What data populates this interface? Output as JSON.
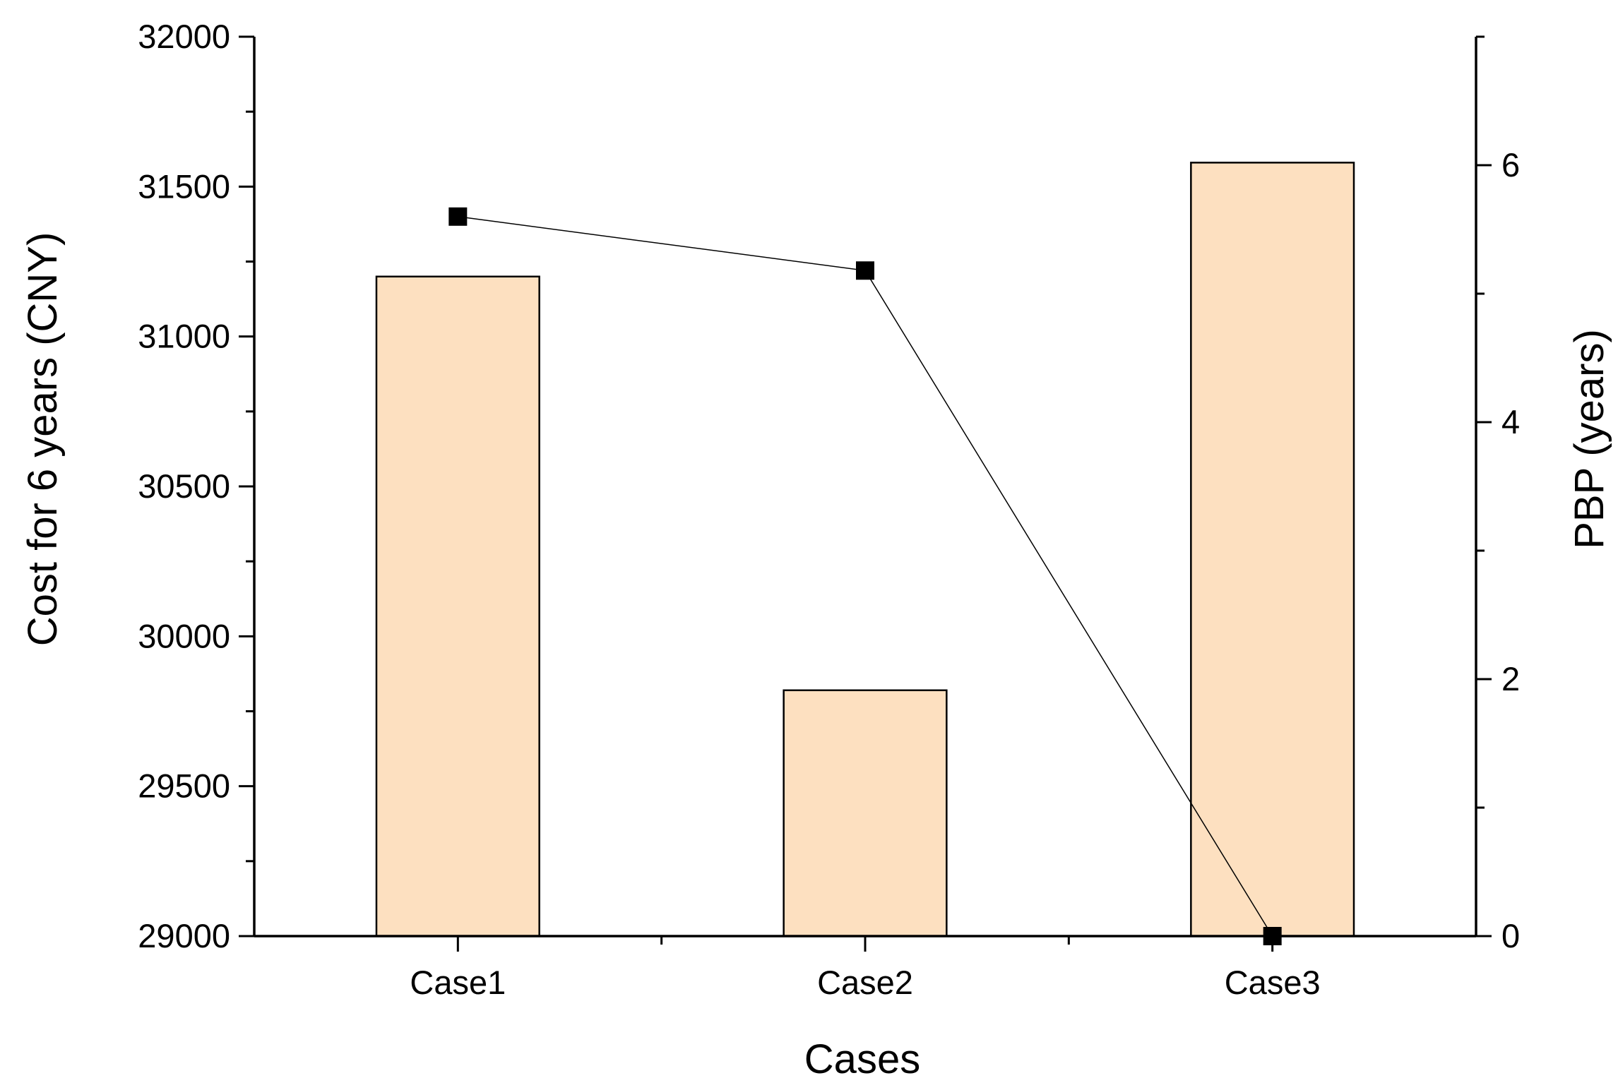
{
  "chart_data": {
    "type": "bar",
    "categories": [
      "Case1",
      "Case2",
      "Case3"
    ],
    "xlabel": "Cases",
    "ylabel": "Cost for 6 years (CNY)",
    "y2label": "PBP (years)",
    "ylim": [
      29000,
      32000
    ],
    "y2lim": [
      0,
      7
    ],
    "yticks": [
      "29000",
      "29500",
      "30000",
      "30500",
      "31000",
      "31500",
      "32000"
    ],
    "y2ticks": [
      "0",
      "2",
      "4",
      "6"
    ],
    "grid": false,
    "series": [
      {
        "axis": "left",
        "kind": "bar",
        "values": [
          31200,
          29820,
          31580
        ],
        "color": "#fde0c0"
      },
      {
        "axis": "right",
        "kind": "line-marker",
        "values": [
          5.6,
          5.18,
          0.0
        ],
        "color": "#000000"
      }
    ]
  }
}
